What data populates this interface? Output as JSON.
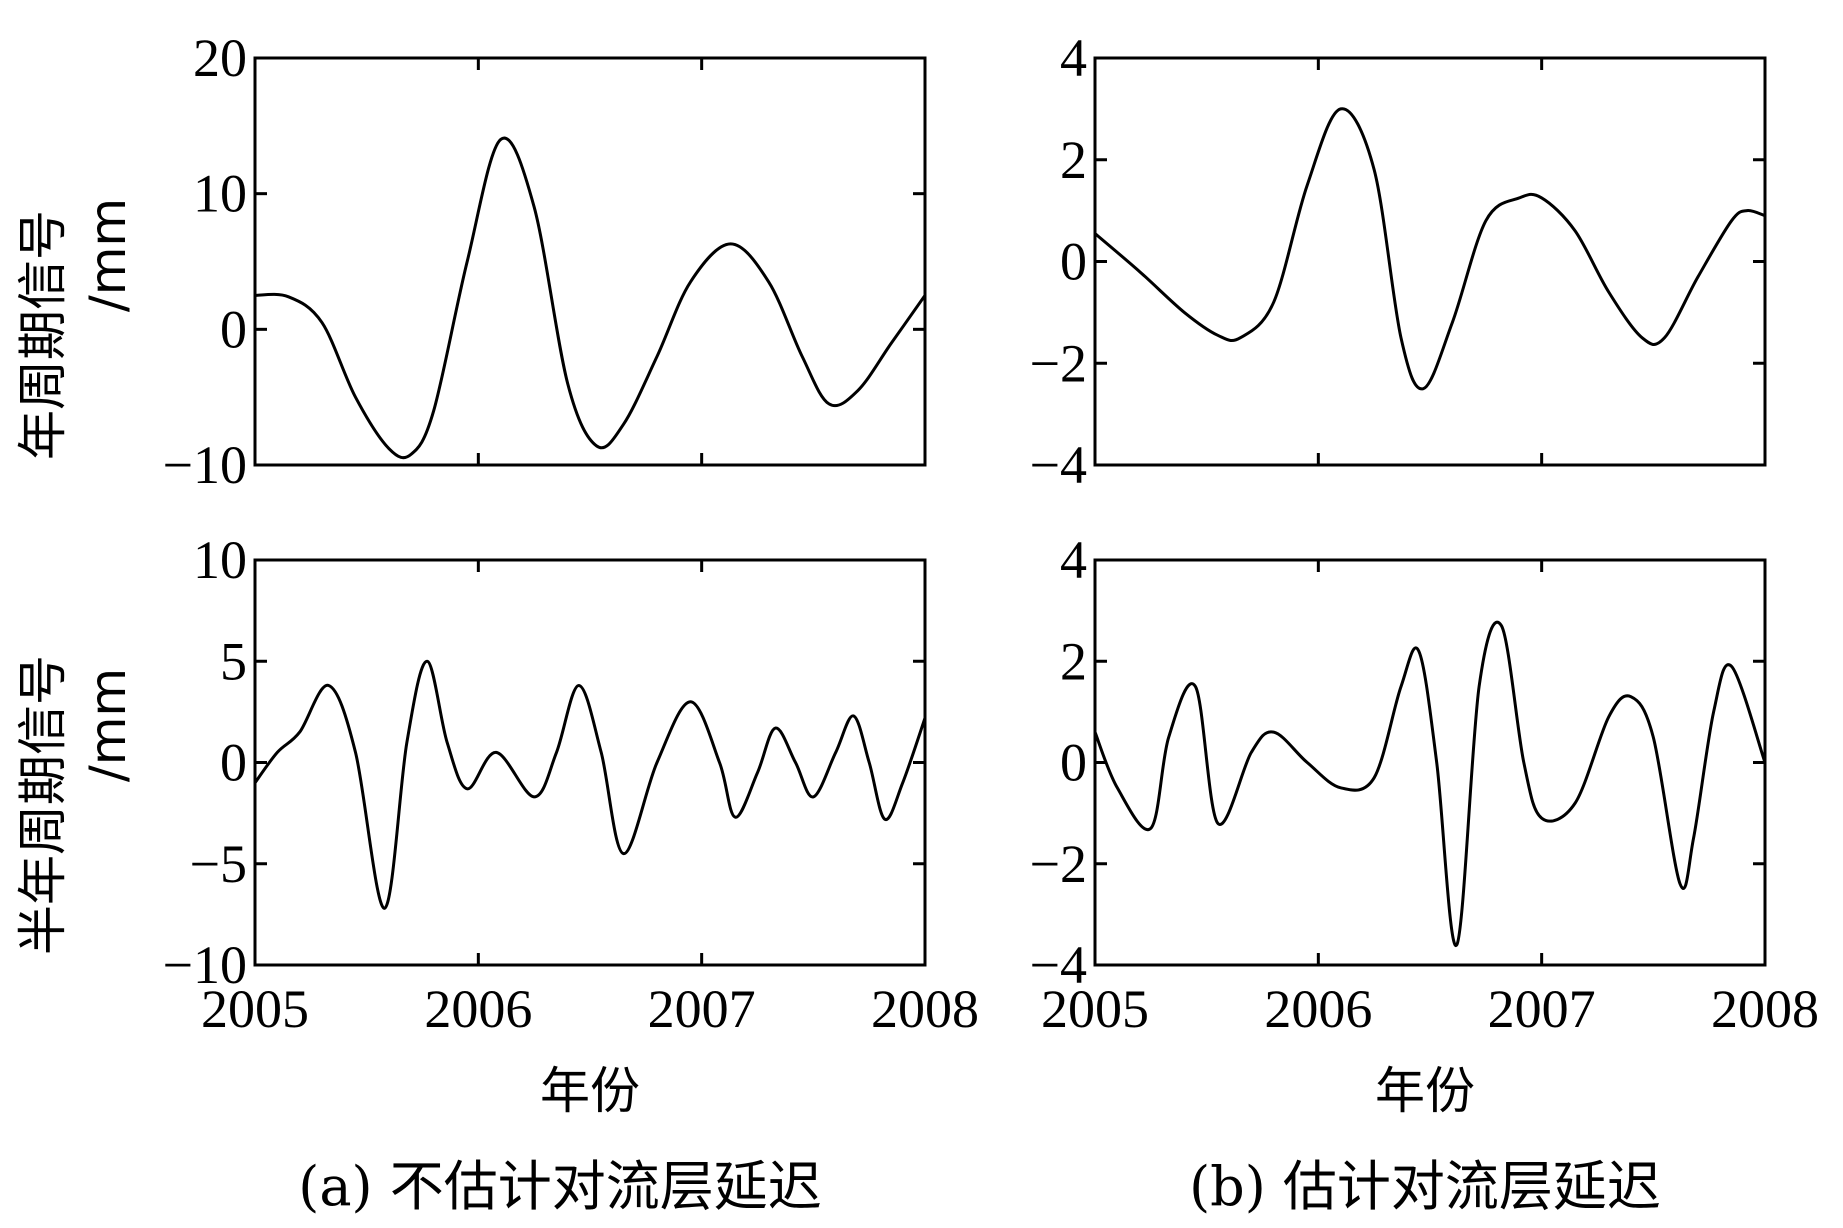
{
  "xlabel": "年份",
  "captions": {
    "a": "(a) 不估计对流层延迟",
    "b": "(b) 估计对流层延迟"
  },
  "row_labels": {
    "annual": [
      "年周期信号",
      "/mm"
    ],
    "semiannual": [
      "半年周期信号",
      "/mm"
    ]
  },
  "chart_data": [
    {
      "id": "a-annual",
      "type": "line",
      "ylabel": "年周期信号/mm",
      "xlabel": "",
      "xlim": [
        2005,
        2008
      ],
      "ylim": [
        -10,
        20
      ],
      "xticks": [
        "2005",
        "2006",
        "2007",
        "2008"
      ],
      "yticks": [
        "20",
        "10",
        "0",
        "−10"
      ],
      "ytick_values": [
        20,
        10,
        0,
        -10
      ],
      "series": [
        {
          "x": [
            2005.0,
            2005.15,
            2005.3,
            2005.45,
            2005.6,
            2005.7,
            2005.8,
            2005.95,
            2006.1,
            2006.25,
            2006.4,
            2006.53,
            2006.65,
            2006.8,
            2006.95,
            2007.13,
            2007.3,
            2007.45,
            2007.57,
            2007.7,
            2007.85,
            2008.0
          ],
          "y": [
            2.5,
            2.4,
            0.5,
            -5.0,
            -8.8,
            -9.2,
            -6.0,
            5.0,
            14.0,
            9.0,
            -4.0,
            -8.6,
            -7.0,
            -2.0,
            3.5,
            6.3,
            3.5,
            -2.0,
            -5.5,
            -4.5,
            -1.0,
            2.5
          ]
        }
      ]
    },
    {
      "id": "b-annual",
      "type": "line",
      "ylabel": "",
      "xlabel": "",
      "xlim": [
        2005,
        2008
      ],
      "ylim": [
        -4,
        4
      ],
      "xticks": [
        "2005",
        "2006",
        "2007",
        "2008"
      ],
      "yticks": [
        "4",
        "2",
        "0",
        "−2",
        "−4"
      ],
      "ytick_values": [
        4,
        2,
        0,
        -2,
        -4
      ],
      "series": [
        {
          "x": [
            2005.0,
            2005.2,
            2005.4,
            2005.55,
            2005.65,
            2005.8,
            2005.95,
            2006.1,
            2006.25,
            2006.37,
            2006.47,
            2006.6,
            2006.75,
            2006.9,
            2007.0,
            2007.15,
            2007.3,
            2007.45,
            2007.55,
            2007.7,
            2007.85,
            2007.92,
            2008.0
          ],
          "y": [
            0.55,
            -0.2,
            -1.0,
            -1.45,
            -1.5,
            -0.8,
            1.5,
            3.0,
            1.8,
            -1.5,
            -2.5,
            -1.2,
            0.8,
            1.25,
            1.25,
            0.6,
            -0.6,
            -1.5,
            -1.5,
            -0.3,
            0.8,
            1.0,
            0.9
          ]
        }
      ]
    },
    {
      "id": "a-semiannual",
      "type": "line",
      "ylabel": "半年周期信号/mm",
      "xlabel": "年份",
      "xlim": [
        2005,
        2008
      ],
      "ylim": [
        -10,
        10
      ],
      "xticks": [
        "2005",
        "2006",
        "2007",
        "2008"
      ],
      "yticks": [
        "10",
        "5",
        "0",
        "−5",
        "−10"
      ],
      "ytick_values": [
        10,
        5,
        0,
        -5,
        -10
      ],
      "series": [
        {
          "x": [
            2005.0,
            2005.1,
            2005.2,
            2005.33,
            2005.45,
            2005.58,
            2005.68,
            2005.77,
            2005.86,
            2005.95,
            2006.08,
            2006.25,
            2006.35,
            2006.45,
            2006.55,
            2006.65,
            2006.8,
            2006.95,
            2007.08,
            2007.15,
            2007.25,
            2007.33,
            2007.42,
            2007.5,
            2007.6,
            2007.68,
            2007.75,
            2007.82,
            2007.9,
            2008.0
          ],
          "y": [
            -1.0,
            0.5,
            1.5,
            3.8,
            0.5,
            -7.2,
            1.0,
            5.0,
            1.0,
            -1.3,
            0.5,
            -1.7,
            0.5,
            3.8,
            0.5,
            -4.5,
            0.0,
            3.0,
            0.0,
            -2.7,
            -0.5,
            1.7,
            0.0,
            -1.7,
            0.5,
            2.3,
            0.0,
            -2.8,
            -1.0,
            2.2
          ]
        }
      ]
    },
    {
      "id": "b-semiannual",
      "type": "line",
      "ylabel": "",
      "xlabel": "年份",
      "xlim": [
        2005,
        2008
      ],
      "ylim": [
        -4,
        4
      ],
      "xticks": [
        "2005",
        "2006",
        "2007",
        "2008"
      ],
      "yticks": [
        "4",
        "2",
        "0",
        "−2",
        "−4"
      ],
      "ytick_values": [
        4,
        2,
        0,
        -2,
        -4
      ],
      "series": [
        {
          "x": [
            2005.0,
            2005.1,
            2005.25,
            2005.33,
            2005.45,
            2005.55,
            2005.7,
            2005.8,
            2005.95,
            2006.1,
            2006.25,
            2006.37,
            2006.45,
            2006.53,
            2006.62,
            2006.72,
            2006.82,
            2006.92,
            2007.0,
            2007.15,
            2007.3,
            2007.4,
            2007.5,
            2007.62,
            2007.68,
            2007.77,
            2007.85,
            2008.0
          ],
          "y": [
            0.6,
            -0.5,
            -1.3,
            0.5,
            1.5,
            -1.2,
            0.2,
            0.6,
            0.0,
            -0.5,
            -0.3,
            1.5,
            2.2,
            0.0,
            -3.6,
            1.5,
            2.7,
            0.0,
            -1.1,
            -0.8,
            0.9,
            1.3,
            0.5,
            -2.4,
            -1.5,
            1.0,
            1.9,
            0.0
          ]
        }
      ]
    }
  ]
}
